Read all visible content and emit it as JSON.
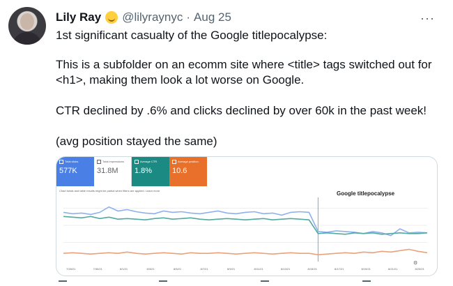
{
  "tweet": {
    "name": "Lily Ray",
    "handle": "@lilyraynyc",
    "separator": "·",
    "date": "Aug 25",
    "more": "···",
    "paragraphs": [
      "1st significant casualty of the Google titlepocalypse:",
      "This is a subfolder on an ecomm site where <title> tags switched out for <h1>, making them look a lot worse on Google.",
      "CTR declined by .6% and clicks declined by over 60k in the past week!",
      "(avg position stayed the same)"
    ]
  },
  "card": {
    "metrics": [
      {
        "label": "Total clicks",
        "value": "577K",
        "color": "#4a7fe6"
      },
      {
        "label": "Total impressions",
        "value": "31.8M",
        "color": "#ffffff"
      },
      {
        "label": "Average CTR",
        "value": "1.8%",
        "color": "#1a8a83"
      },
      {
        "label": "Average position",
        "value": "10.6",
        "color": "#e8702a"
      }
    ],
    "note": "Chart totals and table results might be partial when filters are applied. Learn more",
    "annotation": "Google titlepocalypse",
    "x_ticks": [
      "7/28/21",
      "7/30/21",
      "8/1/21",
      "8/3/21",
      "8/5/21",
      "8/7/21",
      "8/9/21",
      "8/11/21",
      "8/13/21",
      "8/15/21",
      "8/17/21",
      "8/19/21",
      "8/21/21",
      "8/23/21"
    ]
  },
  "chart_data": {
    "type": "line",
    "series": [
      {
        "name": "Total clicks",
        "color": "#8fb0ef",
        "values": [
          0.72,
          0.7,
          0.71,
          0.69,
          0.72,
          0.8,
          0.74,
          0.76,
          0.73,
          0.71,
          0.7,
          0.74,
          0.72,
          0.73,
          0.71,
          0.7,
          0.72,
          0.74,
          0.71,
          0.7,
          0.72,
          0.73,
          0.7,
          0.71,
          0.68,
          0.72,
          0.73,
          0.72,
          0.44,
          0.43,
          0.45,
          0.44,
          0.43,
          0.41,
          0.44,
          0.42,
          0.38,
          0.48,
          0.42,
          0.43,
          0.42
        ]
      },
      {
        "name": "Average CTR",
        "color": "#52a9a0",
        "values": [
          0.66,
          0.65,
          0.64,
          0.66,
          0.63,
          0.65,
          0.62,
          0.63,
          0.62,
          0.61,
          0.63,
          0.64,
          0.62,
          0.63,
          0.64,
          0.62,
          0.61,
          0.62,
          0.63,
          0.62,
          0.61,
          0.62,
          0.63,
          0.61,
          0.62,
          0.63,
          0.62,
          0.61,
          0.41,
          0.42,
          0.41,
          0.4,
          0.42,
          0.41,
          0.42,
          0.4,
          0.41,
          0.42,
          0.41,
          0.41,
          0.42
        ]
      },
      {
        "name": "Average position",
        "color": "#e9a27c",
        "values": [
          0.12,
          0.13,
          0.12,
          0.11,
          0.12,
          0.13,
          0.12,
          0.14,
          0.12,
          0.11,
          0.12,
          0.13,
          0.12,
          0.11,
          0.13,
          0.12,
          0.12,
          0.13,
          0.12,
          0.11,
          0.12,
          0.13,
          0.12,
          0.11,
          0.12,
          0.13,
          0.12,
          0.12,
          0.1,
          0.11,
          0.12,
          0.13,
          0.12,
          0.14,
          0.13,
          0.15,
          0.14,
          0.16,
          0.18,
          0.15,
          0.13
        ]
      }
    ],
    "event_index": 28
  }
}
